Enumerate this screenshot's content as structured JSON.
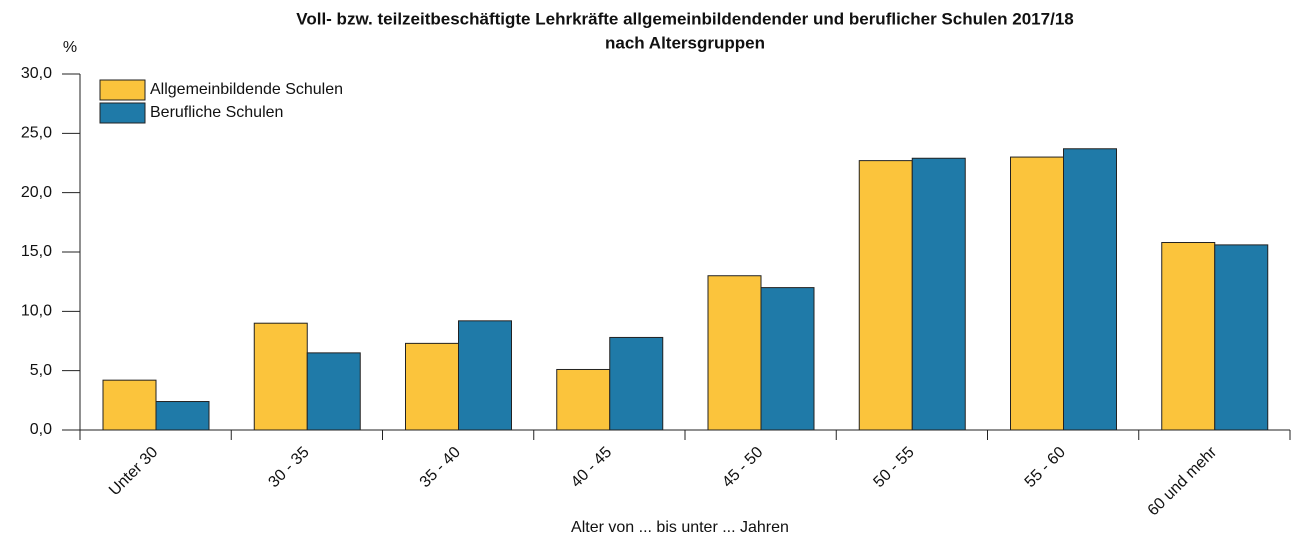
{
  "chart_data": {
    "type": "bar",
    "title": "Voll- bzw. teilzeitbeschäftigte Lehrkräfte allgemeinbildendender und beruflicher Schulen 2017/18",
    "subtitle": "nach Altersgruppen",
    "y_label": "%",
    "x_label": "Alter von ... bis unter ... Jahren",
    "categories": [
      "Unter 30",
      "30 - 35",
      "35 - 40",
      "40 - 45",
      "45 - 50",
      "50 - 55",
      "55 - 60",
      "60 und mehr"
    ],
    "series": [
      {
        "name": "Allgemeinbildende Schulen",
        "color": "#fbc43c",
        "values": [
          4.2,
          9.0,
          7.3,
          5.1,
          13.0,
          22.7,
          23.0,
          15.8
        ]
      },
      {
        "name": "Berufliche Schulen",
        "color": "#1f7aa8",
        "values": [
          2.4,
          6.5,
          9.2,
          7.8,
          12.0,
          22.9,
          23.7,
          15.6
        ]
      }
    ],
    "ylim": [
      0,
      30
    ],
    "yticks": [
      {
        "value": 0,
        "label": "0,0"
      },
      {
        "value": 5,
        "label": "5,0"
      },
      {
        "value": 10,
        "label": "10,0"
      },
      {
        "value": 15,
        "label": "15,0"
      },
      {
        "value": 20,
        "label": "20,0"
      },
      {
        "value": 25,
        "label": "25,0"
      },
      {
        "value": 30,
        "label": "30,0"
      }
    ],
    "legend": "top-left"
  }
}
